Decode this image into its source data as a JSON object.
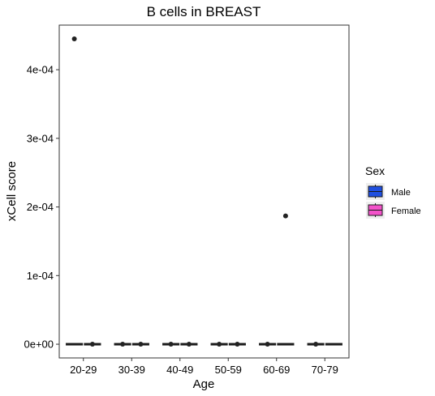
{
  "chart_data": {
    "type": "boxplot",
    "title": "B cells in BREAST",
    "xlabel": "Age",
    "ylabel": "xCell score",
    "categories": [
      "20-29",
      "30-39",
      "40-49",
      "50-59",
      "60-69",
      "70-79"
    ],
    "y_ticks": [
      0,
      0.0001,
      0.0002,
      0.0003,
      0.0004
    ],
    "y_tick_labels": [
      "0e+00",
      "1e-04",
      "2e-04",
      "3e-04",
      "4e-04"
    ],
    "ylim": [
      -2e-05,
      0.000465
    ],
    "grid": false,
    "legend": {
      "title": "Sex",
      "position": "right"
    },
    "series": [
      {
        "name": "Male",
        "color": "#1F4FE0",
        "boxes": [
          {
            "category": "20-29",
            "median": 0,
            "q1": 0,
            "q3": 0,
            "outliers": [
              0.000445
            ]
          },
          {
            "category": "30-39",
            "median": 0,
            "q1": 0,
            "q3": 0,
            "outliers": [
              0
            ]
          },
          {
            "category": "40-49",
            "median": 0,
            "q1": 0,
            "q3": 0,
            "outliers": [
              0
            ]
          },
          {
            "category": "50-59",
            "median": 0,
            "q1": 0,
            "q3": 0,
            "outliers": [
              0
            ]
          },
          {
            "category": "60-69",
            "median": 0,
            "q1": 0,
            "q3": 0,
            "outliers": [
              0
            ]
          },
          {
            "category": "70-79",
            "median": 0,
            "q1": 0,
            "q3": 0,
            "outliers": [
              0
            ]
          }
        ]
      },
      {
        "name": "Female",
        "color": "#F252C9",
        "boxes": [
          {
            "category": "20-29",
            "median": 0,
            "q1": 0,
            "q3": 0,
            "outliers": [
              0
            ]
          },
          {
            "category": "30-39",
            "median": 0,
            "q1": 0,
            "q3": 0,
            "outliers": [
              0
            ]
          },
          {
            "category": "40-49",
            "median": 0,
            "q1": 0,
            "q3": 0,
            "outliers": [
              0
            ]
          },
          {
            "category": "50-59",
            "median": 0,
            "q1": 0,
            "q3": 0,
            "outliers": [
              0
            ]
          },
          {
            "category": "60-69",
            "median": 0,
            "q1": 0,
            "q3": 0,
            "outliers": [
              0.000187
            ]
          },
          {
            "category": "70-79",
            "median": 0,
            "q1": 0,
            "q3": 0,
            "outliers": []
          }
        ]
      }
    ]
  }
}
